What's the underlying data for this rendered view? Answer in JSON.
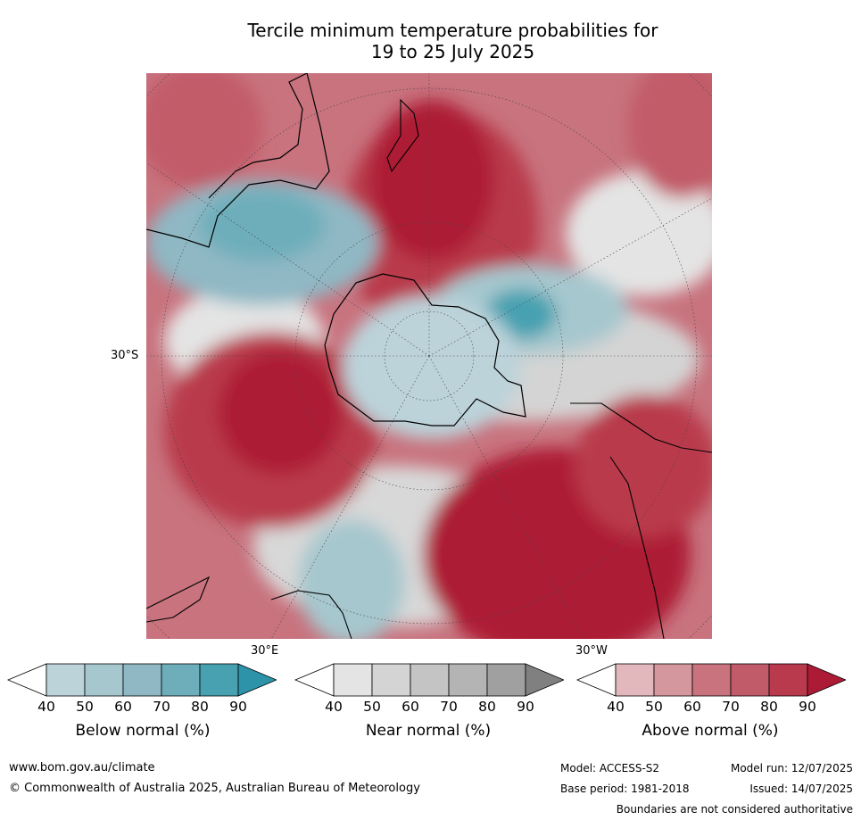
{
  "title_line1": "Tercile minimum temperature probabilities for",
  "title_line2": "19 to 25 July 2025",
  "axis": {
    "lat_label": "30°S",
    "lon_east_label": "30°E",
    "lon_west_label": "30°W"
  },
  "colorbars": [
    {
      "label": "Below normal (%)",
      "ticks": [
        "40",
        "50",
        "60",
        "70",
        "80",
        "90"
      ],
      "colors": [
        "#ffffff",
        "#bcd3da",
        "#a6c7ce",
        "#8fb8c4",
        "#6daeba",
        "#47a1b1",
        "#2c93a8"
      ]
    },
    {
      "label": "Near normal (%)",
      "ticks": [
        "40",
        "50",
        "60",
        "70",
        "80",
        "90"
      ],
      "colors": [
        "#ffffff",
        "#e4e4e4",
        "#d4d4d4",
        "#c4c4c4",
        "#b4b4b4",
        "#a0a0a0",
        "#808080"
      ]
    },
    {
      "label": "Above normal (%)",
      "ticks": [
        "40",
        "50",
        "60",
        "70",
        "80",
        "90"
      ],
      "colors": [
        "#ffffff",
        "#e2b8bd",
        "#d5979e",
        "#c8737e",
        "#c25b69",
        "#b93a4c",
        "#ad1a35"
      ]
    }
  ],
  "footer": {
    "website": "www.bom.gov.au/climate",
    "copyright": "© Commonwealth of Australia 2025, Australian Bureau of Meteorology",
    "model": "Model: ACCESS-S2",
    "base_period": "Base period: 1981-2018",
    "model_run": "Model run: 12/07/2025",
    "issued": "Issued: 14/07/2025",
    "disclaimer": "Boundaries are not considered authoritative"
  }
}
